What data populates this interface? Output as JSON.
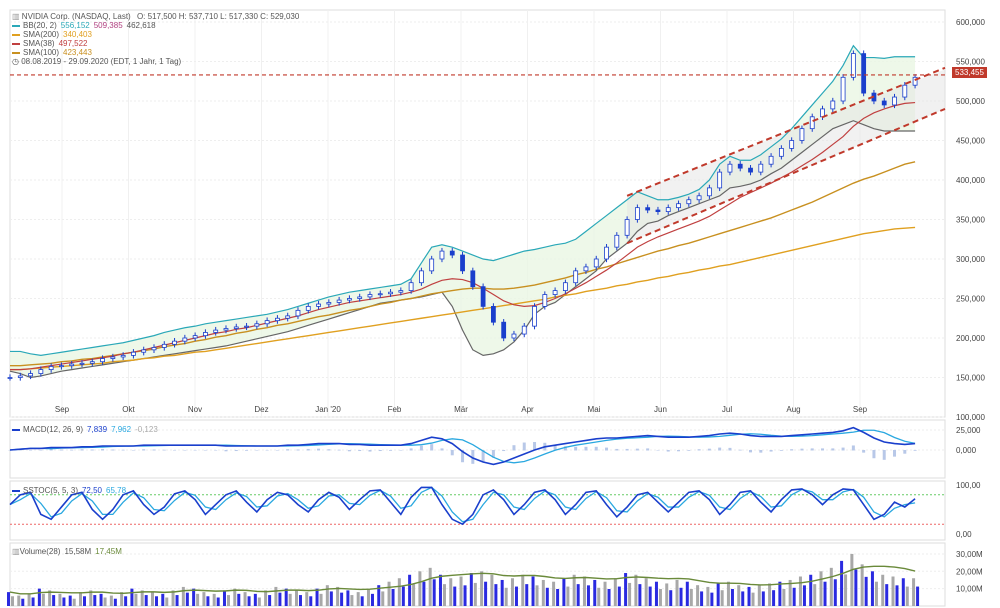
{
  "header": {
    "title": "NVIDIA Corp. (NASDAQ, Last)",
    "ohlc": "O: 517,500  H: 537,710  L: 517,330  C: 529,030",
    "range": "08.08.2019 - 29.09.2020",
    "range_note": "(EDT, 1 Jahr, 1 Tag)"
  },
  "legend": {
    "bb": {
      "label": "BB(20, 2)",
      "v1": "556,152",
      "v2": "509,385",
      "v3": "462,618",
      "color": "#2aa8b8"
    },
    "sma200": {
      "label": "SMA(200)",
      "value": "340,403",
      "color": "#e0a020"
    },
    "sma38": {
      "label": "SMA(38)",
      "value": "497,522",
      "color": "#c04040"
    },
    "sma100": {
      "label": "SMA(100)",
      "value": "423,443",
      "color": "#c89020"
    }
  },
  "price_tag": "533,455",
  "macd": {
    "label": "MACD(12, 26, 9)",
    "v1": "7,839",
    "v2": "7,962",
    "v3": "-0,123"
  },
  "sstoc": {
    "label": "SSTOC(5, 5, 3)",
    "v1": "72,50",
    "v2": "65,78"
  },
  "volume": {
    "label": "Volume(28)",
    "v1": "15,58M",
    "v2": "17,45M"
  },
  "chart_data": {
    "type": "candlestick",
    "x_labels": [
      "Sep",
      "Okt",
      "Nov",
      "Dez",
      "Jan '20",
      "Feb",
      "Mär",
      "Apr",
      "Mai",
      "Jun",
      "Jul",
      "Aug",
      "Sep"
    ],
    "y_ticks": [
      "600,000",
      "550,000",
      "500,000",
      "450,000",
      "400,000",
      "350,000",
      "300,000",
      "250,000",
      "200,000",
      "150,000",
      "100,000"
    ],
    "ylim": [
      100,
      600
    ],
    "close_series": [
      150,
      152,
      155,
      160,
      164,
      165,
      167,
      168,
      170,
      174,
      176,
      178,
      182,
      185,
      188,
      192,
      196,
      200,
      203,
      207,
      210,
      212,
      214,
      215,
      218,
      222,
      225,
      228,
      235,
      240,
      243,
      245,
      248,
      250,
      252,
      255,
      256,
      258,
      260,
      270,
      285,
      300,
      310,
      305,
      285,
      265,
      240,
      220,
      200,
      205,
      215,
      240,
      255,
      260,
      270,
      285,
      290,
      300,
      315,
      330,
      350,
      365,
      362,
      360,
      365,
      370,
      375,
      380,
      390,
      410,
      420,
      415,
      410,
      420,
      430,
      440,
      450,
      465,
      480,
      490,
      500,
      530,
      560,
      510,
      500,
      495,
      505,
      520,
      530
    ],
    "sma200_series": [
      160,
      160,
      161,
      162,
      163,
      164,
      165,
      166,
      167,
      168,
      170,
      171,
      172,
      174,
      175,
      177,
      178,
      180,
      182,
      183,
      185,
      187,
      189,
      191,
      193,
      195,
      197,
      199,
      201,
      203,
      205,
      207,
      209,
      211,
      213,
      215,
      217,
      219,
      221,
      223,
      225,
      227,
      229,
      231,
      233,
      235,
      237,
      239,
      241,
      243,
      245,
      247,
      249,
      252,
      254,
      256,
      259,
      261,
      263,
      266,
      268,
      271,
      273,
      276,
      278,
      281,
      283,
      286,
      288,
      291,
      293,
      296,
      299,
      302,
      305,
      308,
      311,
      314,
      317,
      320,
      323,
      326,
      329,
      332,
      334,
      336,
      338,
      339,
      340
    ],
    "sma100_series": [
      165,
      165,
      166,
      167,
      168,
      170,
      171,
      173,
      174,
      176,
      178,
      180,
      182,
      184,
      186,
      189,
      191,
      193,
      196,
      198,
      201,
      203,
      206,
      208,
      211,
      213,
      216,
      218,
      221,
      224,
      227,
      229,
      232,
      235,
      237,
      240,
      243,
      245,
      248,
      250,
      253,
      256,
      258,
      260,
      262,
      263,
      263,
      262,
      262,
      263,
      265,
      267,
      270,
      273,
      276,
      280,
      283,
      287,
      290,
      294,
      298,
      302,
      306,
      310,
      313,
      317,
      320,
      324,
      328,
      332,
      336,
      340,
      344,
      348,
      352,
      357,
      362,
      367,
      372,
      378,
      384,
      390,
      396,
      401,
      405,
      410,
      415,
      420,
      423
    ],
    "sma38_series": [
      160,
      160,
      161,
      163,
      165,
      167,
      169,
      171,
      173,
      175,
      177,
      180,
      182,
      185,
      188,
      191,
      194,
      197,
      200,
      203,
      206,
      208,
      211,
      213,
      216,
      219,
      222,
      225,
      228,
      232,
      236,
      239,
      242,
      245,
      247,
      249,
      251,
      253,
      255,
      258,
      262,
      268,
      273,
      275,
      274,
      270,
      263,
      255,
      247,
      242,
      240,
      241,
      245,
      250,
      256,
      263,
      270,
      278,
      286,
      295,
      305,
      315,
      322,
      328,
      333,
      338,
      343,
      348,
      354,
      362,
      370,
      378,
      384,
      390,
      396,
      403,
      410,
      418,
      426,
      435,
      445,
      455,
      468,
      478,
      485,
      490,
      494,
      497,
      498
    ],
    "bb_upper": [
      183,
      183,
      180,
      178,
      180,
      182,
      184,
      186,
      188,
      190,
      192,
      194,
      197,
      200,
      203,
      207,
      210,
      213,
      215,
      218,
      220,
      222,
      224,
      226,
      228,
      230,
      233,
      236,
      240,
      244,
      248,
      252,
      255,
      258,
      260,
      262,
      264,
      266,
      268,
      275,
      295,
      315,
      318,
      315,
      310,
      305,
      300,
      298,
      302,
      306,
      310,
      312,
      315,
      318,
      320,
      325,
      335,
      345,
      355,
      365,
      375,
      385,
      380,
      375,
      375,
      378,
      382,
      388,
      400,
      420,
      430,
      425,
      425,
      432,
      442,
      452,
      465,
      480,
      495,
      510,
      525,
      545,
      570,
      555,
      555,
      554,
      556,
      556,
      556
    ],
    "bb_lower": [
      158,
      155,
      150,
      152,
      155,
      158,
      160,
      162,
      164,
      166,
      168,
      170,
      172,
      174,
      176,
      178,
      180,
      182,
      184,
      186,
      188,
      190,
      193,
      196,
      199,
      202,
      205,
      208,
      212,
      216,
      220,
      224,
      228,
      232,
      236,
      240,
      244,
      246,
      248,
      250,
      252,
      255,
      258,
      240,
      210,
      185,
      178,
      180,
      185,
      195,
      210,
      230,
      240,
      245,
      255,
      265,
      275,
      285,
      300,
      310,
      320,
      335,
      345,
      348,
      355,
      360,
      365,
      370,
      375,
      380,
      390,
      392,
      395,
      400,
      408,
      415,
      425,
      435,
      445,
      455,
      465,
      470,
      475,
      470,
      465,
      462,
      462,
      462,
      462
    ],
    "macd_series": [
      0,
      1,
      2,
      2,
      3,
      3,
      3,
      4,
      4,
      5,
      5,
      5,
      5,
      6,
      6,
      6,
      6,
      6,
      6,
      6,
      6,
      5,
      5,
      5,
      5,
      5,
      5,
      6,
      6,
      7,
      8,
      8,
      8,
      7,
      7,
      6,
      6,
      6,
      6,
      8,
      12,
      16,
      14,
      8,
      -2,
      -10,
      -15,
      -18,
      -15,
      -10,
      -5,
      0,
      4,
      6,
      8,
      10,
      12,
      14,
      15,
      15,
      16,
      17,
      18,
      17,
      16,
      16,
      16,
      17,
      18,
      20,
      21,
      20,
      18,
      17,
      17,
      17,
      18,
      19,
      20,
      21,
      22,
      24,
      28,
      22,
      15,
      10,
      8,
      7,
      8
    ],
    "stoch_series": [
      60,
      80,
      85,
      40,
      30,
      55,
      80,
      85,
      50,
      30,
      50,
      80,
      88,
      60,
      40,
      55,
      82,
      88,
      70,
      40,
      60,
      80,
      88,
      65,
      45,
      70,
      85,
      80,
      60,
      45,
      70,
      85,
      75,
      50,
      70,
      88,
      90,
      65,
      40,
      75,
      95,
      95,
      60,
      30,
      20,
      40,
      80,
      90,
      70,
      40,
      60,
      85,
      90,
      70,
      40,
      60,
      85,
      88,
      60,
      35,
      55,
      80,
      85,
      65,
      45,
      65,
      85,
      88,
      70,
      40,
      60,
      85,
      88,
      65,
      45,
      70,
      90,
      92,
      80,
      60,
      80,
      92,
      90,
      60,
      30,
      40,
      65,
      55,
      72
    ],
    "volume_series": [
      8,
      6,
      7,
      10,
      9,
      7,
      6,
      8,
      9,
      7,
      6,
      8,
      10,
      9,
      8,
      7,
      9,
      11,
      10,
      8,
      7,
      9,
      10,
      8,
      7,
      9,
      11,
      10,
      9,
      8,
      10,
      12,
      11,
      9,
      8,
      10,
      12,
      14,
      16,
      18,
      20,
      22,
      18,
      16,
      17,
      19,
      20,
      18,
      15,
      16,
      18,
      17,
      15,
      14,
      16,
      18,
      17,
      15,
      14,
      16,
      19,
      18,
      16,
      14,
      13,
      15,
      14,
      12,
      11,
      13,
      14,
      12,
      11,
      12,
      13,
      14,
      15,
      17,
      18,
      20,
      22,
      26,
      30,
      24,
      20,
      18,
      17,
      16,
      16
    ],
    "volume_ticks": [
      "30,00M",
      "20,00M",
      "10,00M"
    ],
    "macd_ticks": [
      "25,000",
      "0,000"
    ],
    "stoch_ticks": [
      "100,00",
      "0,00"
    ]
  }
}
